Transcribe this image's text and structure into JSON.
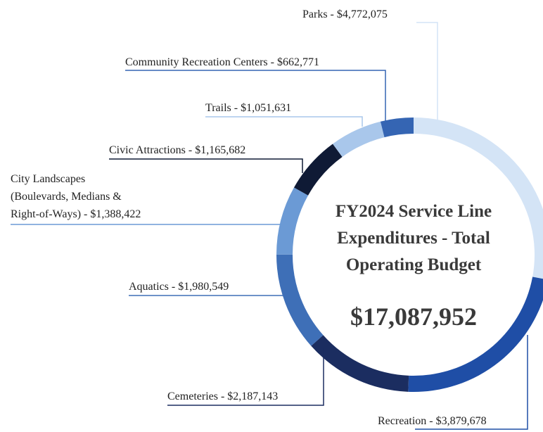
{
  "chart_data": {
    "type": "donut",
    "title": "FY2024 Service Line Expenditures - Total Operating Budget",
    "total": 17087952,
    "total_label": "$17,087,952",
    "values": [
      4772075,
      3879678,
      2187143,
      1980549,
      1388422,
      1165682,
      1051631,
      662771
    ],
    "value_labels": [
      "Parks - $4,772,075",
      "Recreation - $3,879,678",
      "Cemeteries - $2,187,143",
      "Aquatics - $1,980,549",
      "City Landscapes\n(Boulevards, Medians &\nRight-of-Ways) - $1,388,422",
      "Civic Attractions - $1,165,682",
      "Trails - $1,051,631",
      "Community Recreation Centers - $662,771"
    ],
    "colors": [
      "#d4e4f6",
      "#1f4ea6",
      "#1b2d60",
      "#3e6fb7",
      "#6b9ad5",
      "#0f1a35",
      "#a9c7eb",
      "#3565b3"
    ]
  }
}
